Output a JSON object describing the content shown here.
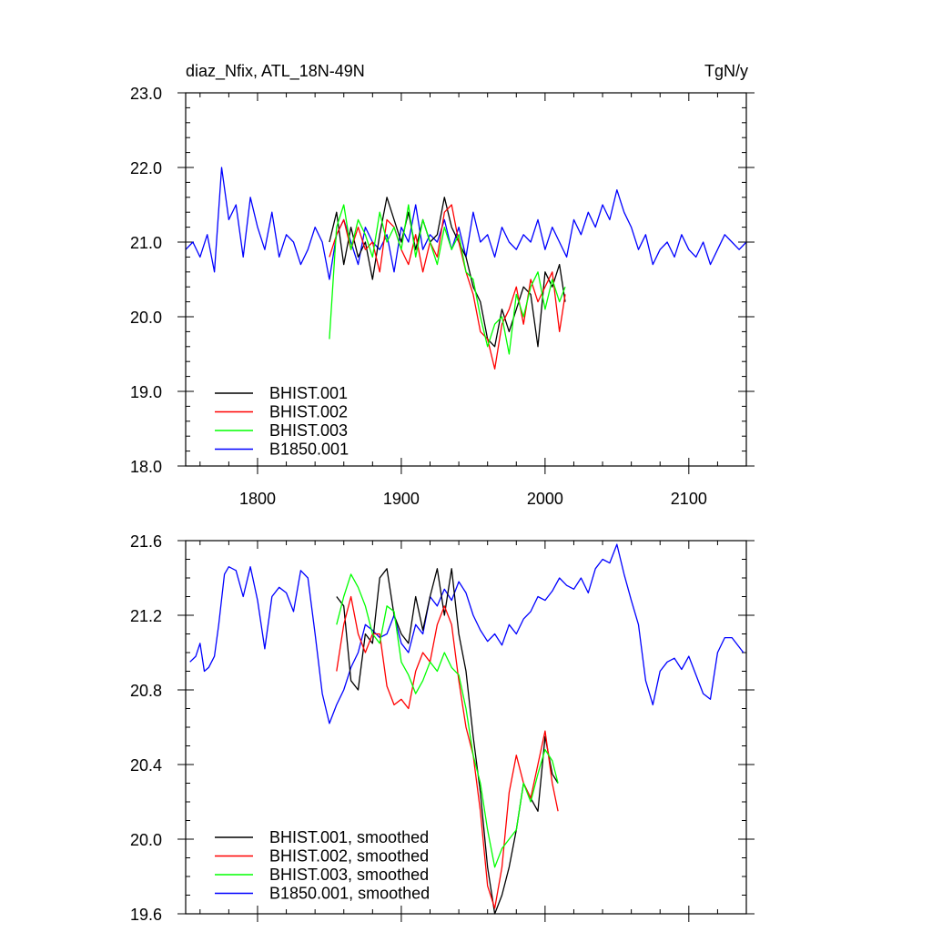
{
  "chart_data": [
    {
      "type": "line",
      "title_left": "diaz_Nfix, ATL_18N-49N",
      "title_right": "TgN/y",
      "xlim": [
        1750,
        2140
      ],
      "ylim": [
        18.0,
        23.0
      ],
      "x_major_ticks": [
        1800,
        1900,
        2000,
        2100
      ],
      "x_tick_labels": [
        "1800",
        "1900",
        "2000",
        "2100"
      ],
      "y_major_ticks": [
        18.0,
        19.0,
        20.0,
        21.0,
        22.0,
        23.0
      ],
      "y_tick_labels": [
        "18.0",
        "19.0",
        "20.0",
        "21.0",
        "22.0",
        "23.0"
      ],
      "legend_position": "bottom-left",
      "series": [
        {
          "name": "B1850.001",
          "color": "#0000ff",
          "x": [
            1750,
            1755,
            1760,
            1765,
            1770,
            1775,
            1780,
            1785,
            1790,
            1795,
            1800,
            1805,
            1810,
            1815,
            1820,
            1825,
            1830,
            1835,
            1840,
            1845,
            1850,
            1855,
            1860,
            1865,
            1870,
            1875,
            1880,
            1885,
            1890,
            1895,
            1900,
            1905,
            1910,
            1915,
            1920,
            1925,
            1930,
            1935,
            1940,
            1945,
            1950,
            1955,
            1960,
            1965,
            1970,
            1975,
            1980,
            1985,
            1990,
            1995,
            2000,
            2005,
            2010,
            2015,
            2020,
            2025,
            2030,
            2035,
            2040,
            2045,
            2050,
            2055,
            2060,
            2065,
            2070,
            2075,
            2080,
            2085,
            2090,
            2095,
            2100,
            2105,
            2110,
            2115,
            2120,
            2125,
            2130,
            2135,
            2140
          ],
          "values": [
            20.9,
            21.0,
            20.8,
            21.1,
            20.6,
            22.0,
            21.3,
            21.5,
            20.8,
            21.6,
            21.2,
            20.9,
            21.4,
            20.8,
            21.1,
            21.0,
            20.7,
            20.9,
            21.2,
            21.0,
            20.5,
            21.1,
            21.3,
            21.0,
            20.7,
            21.2,
            21.0,
            20.9,
            21.1,
            20.6,
            21.2,
            21.0,
            21.5,
            20.9,
            21.1,
            21.0,
            21.3,
            20.9,
            21.2,
            20.8,
            21.4,
            21.0,
            21.1,
            20.8,
            21.2,
            21.0,
            20.9,
            21.1,
            21.0,
            21.3,
            20.9,
            21.2,
            21.0,
            20.8,
            21.3,
            21.1,
            21.4,
            21.2,
            21.5,
            21.3,
            21.7,
            21.4,
            21.2,
            20.9,
            21.1,
            20.7,
            20.9,
            21.0,
            20.8,
            21.1,
            20.9,
            20.8,
            21.0,
            20.7,
            20.9,
            21.1,
            21.0,
            20.9,
            21.0
          ]
        },
        {
          "name": "BHIST.001",
          "color": "#000000",
          "x": [
            1850,
            1855,
            1860,
            1865,
            1870,
            1875,
            1880,
            1885,
            1890,
            1895,
            1900,
            1905,
            1910,
            1915,
            1920,
            1925,
            1930,
            1935,
            1940,
            1945,
            1950,
            1955,
            1960,
            1965,
            1970,
            1975,
            1980,
            1985,
            1990,
            1995,
            2000,
            2005,
            2010,
            2014
          ],
          "values": [
            21.0,
            21.4,
            20.7,
            21.2,
            20.8,
            21.0,
            20.5,
            21.1,
            21.6,
            21.3,
            21.0,
            21.4,
            20.9,
            21.3,
            21.0,
            21.1,
            21.6,
            21.2,
            21.0,
            20.8,
            20.4,
            20.2,
            19.7,
            19.6,
            20.1,
            19.8,
            20.1,
            20.4,
            20.3,
            19.6,
            20.6,
            20.4,
            20.7,
            20.2
          ]
        },
        {
          "name": "BHIST.002",
          "color": "#ff0000",
          "x": [
            1850,
            1855,
            1860,
            1865,
            1870,
            1875,
            1880,
            1885,
            1890,
            1895,
            1900,
            1905,
            1910,
            1915,
            1920,
            1925,
            1930,
            1935,
            1940,
            1945,
            1950,
            1955,
            1960,
            1965,
            1970,
            1975,
            1980,
            1985,
            1990,
            1995,
            2000,
            2005,
            2010,
            2014
          ],
          "values": [
            20.8,
            21.1,
            21.3,
            20.9,
            21.2,
            20.9,
            21.0,
            20.6,
            21.3,
            21.2,
            20.9,
            20.7,
            21.1,
            20.6,
            21.0,
            20.8,
            21.4,
            21.5,
            21.0,
            20.6,
            20.3,
            19.8,
            19.7,
            19.3,
            19.9,
            20.1,
            20.4,
            19.9,
            20.5,
            20.2,
            20.4,
            20.6,
            19.8,
            20.3
          ]
        },
        {
          "name": "BHIST.003",
          "color": "#00ff00",
          "x": [
            1850,
            1855,
            1860,
            1865,
            1870,
            1875,
            1880,
            1885,
            1890,
            1895,
            1900,
            1905,
            1910,
            1915,
            1920,
            1925,
            1930,
            1935,
            1940,
            1945,
            1950,
            1955,
            1960,
            1965,
            1970,
            1975,
            1980,
            1985,
            1990,
            1995,
            2000,
            2005,
            2010,
            2014
          ],
          "values": [
            19.7,
            21.2,
            21.5,
            20.9,
            21.3,
            21.1,
            20.8,
            21.4,
            21.0,
            21.2,
            20.9,
            21.5,
            20.8,
            21.3,
            21.0,
            20.7,
            21.2,
            20.9,
            21.1,
            20.6,
            20.5,
            20.0,
            19.6,
            19.9,
            20.0,
            19.5,
            20.3,
            20.0,
            20.4,
            20.6,
            20.1,
            20.5,
            20.2,
            20.4
          ]
        }
      ]
    },
    {
      "type": "line",
      "xlim": [
        1750,
        2140
      ],
      "ylim": [
        19.6,
        21.6
      ],
      "x_major_ticks": [
        1800,
        1900,
        2000,
        2100
      ],
      "y_major_ticks": [
        19.6,
        20.0,
        20.4,
        20.8,
        21.2,
        21.6
      ],
      "y_tick_labels": [
        "19.6",
        "20.0",
        "20.4",
        "20.8",
        "21.2",
        "21.6"
      ],
      "legend_position": "bottom-left",
      "series": [
        {
          "name": "B1850.001, smoothed",
          "color": "#0000ff",
          "x": [
            1753,
            1757,
            1760,
            1763,
            1766,
            1770,
            1773,
            1777,
            1780,
            1785,
            1790,
            1795,
            1800,
            1805,
            1810,
            1815,
            1820,
            1825,
            1830,
            1835,
            1840,
            1845,
            1850,
            1855,
            1860,
            1865,
            1870,
            1875,
            1880,
            1885,
            1890,
            1895,
            1900,
            1905,
            1910,
            1915,
            1920,
            1925,
            1930,
            1935,
            1940,
            1945,
            1950,
            1955,
            1960,
            1965,
            1970,
            1975,
            1980,
            1985,
            1990,
            1995,
            2000,
            2005,
            2010,
            2015,
            2020,
            2025,
            2030,
            2035,
            2040,
            2045,
            2050,
            2055,
            2060,
            2065,
            2070,
            2075,
            2080,
            2085,
            2090,
            2095,
            2100,
            2105,
            2110,
            2115,
            2120,
            2125,
            2130,
            2135,
            2138
          ],
          "values": [
            20.95,
            20.98,
            21.05,
            20.9,
            20.92,
            20.98,
            21.15,
            21.42,
            21.46,
            21.44,
            21.3,
            21.46,
            21.28,
            21.02,
            21.3,
            21.35,
            21.32,
            21.22,
            21.44,
            21.4,
            21.1,
            20.78,
            20.62,
            20.72,
            20.8,
            20.92,
            21.0,
            21.15,
            21.12,
            21.08,
            21.1,
            21.2,
            21.05,
            21.0,
            21.15,
            21.1,
            21.3,
            21.25,
            21.34,
            21.28,
            21.38,
            21.32,
            21.2,
            21.12,
            21.06,
            21.1,
            21.04,
            21.15,
            21.1,
            21.18,
            21.22,
            21.3,
            21.28,
            21.33,
            21.4,
            21.36,
            21.34,
            21.4,
            21.32,
            21.45,
            21.5,
            21.48,
            21.58,
            21.42,
            21.28,
            21.15,
            20.85,
            20.72,
            20.9,
            20.95,
            20.97,
            20.91,
            20.98,
            20.88,
            20.78,
            20.75,
            21.0,
            21.08,
            21.08,
            21.03,
            21.0
          ]
        },
        {
          "name": "BHIST.001, smoothed",
          "color": "#000000",
          "x": [
            1855,
            1860,
            1865,
            1870,
            1875,
            1880,
            1885,
            1890,
            1895,
            1900,
            1905,
            1910,
            1915,
            1920,
            1925,
            1930,
            1935,
            1940,
            1945,
            1950,
            1955,
            1960,
            1965,
            1970,
            1975,
            1980,
            1985,
            1990,
            1995,
            2000,
            2005,
            2009
          ],
          "values": [
            21.3,
            21.25,
            20.85,
            20.8,
            21.1,
            21.05,
            21.4,
            21.45,
            21.2,
            21.1,
            21.05,
            21.3,
            21.12,
            21.3,
            21.45,
            21.2,
            21.45,
            21.1,
            20.9,
            20.55,
            20.25,
            19.85,
            19.6,
            19.7,
            19.85,
            20.05,
            20.3,
            20.22,
            20.15,
            20.55,
            20.35,
            20.3
          ]
        },
        {
          "name": "BHIST.002, smoothed",
          "color": "#ff0000",
          "x": [
            1855,
            1860,
            1865,
            1870,
            1875,
            1880,
            1885,
            1890,
            1895,
            1900,
            1905,
            1910,
            1915,
            1920,
            1925,
            1930,
            1935,
            1940,
            1945,
            1950,
            1955,
            1960,
            1965,
            1970,
            1975,
            1980,
            1985,
            1990,
            1995,
            2000,
            2005,
            2009
          ],
          "values": [
            20.9,
            21.15,
            21.3,
            21.1,
            21.0,
            21.1,
            21.1,
            20.82,
            20.72,
            20.75,
            20.7,
            20.9,
            21.0,
            20.95,
            21.15,
            21.25,
            21.15,
            20.85,
            20.6,
            20.45,
            20.15,
            19.75,
            19.63,
            19.85,
            20.25,
            20.45,
            20.3,
            20.22,
            20.4,
            20.58,
            20.3,
            20.15
          ]
        },
        {
          "name": "BHIST.003, smoothed",
          "color": "#00ff00",
          "x": [
            1855,
            1860,
            1865,
            1870,
            1875,
            1880,
            1885,
            1890,
            1895,
            1900,
            1905,
            1910,
            1915,
            1920,
            1925,
            1930,
            1935,
            1940,
            1945,
            1950,
            1955,
            1960,
            1965,
            1970,
            1975,
            1980,
            1985,
            1990,
            1995,
            2000,
            2005,
            2009
          ],
          "values": [
            21.15,
            21.3,
            21.42,
            21.35,
            21.25,
            21.1,
            21.05,
            21.25,
            21.22,
            20.95,
            20.88,
            20.78,
            20.85,
            20.95,
            20.9,
            21.0,
            20.92,
            20.88,
            20.7,
            20.45,
            20.3,
            20.05,
            19.85,
            19.95,
            20.0,
            20.05,
            20.3,
            20.2,
            20.35,
            20.48,
            20.42,
            20.3
          ]
        }
      ]
    }
  ]
}
